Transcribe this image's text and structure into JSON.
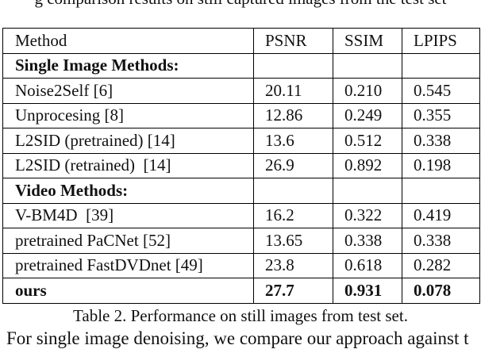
{
  "text_above": "g comparison results on still captured images from the test set",
  "table": {
    "header": [
      "Method",
      "PSNR",
      "SSIM",
      "LPIPS"
    ],
    "rows": [
      {
        "section": "Single Image Methods:"
      },
      {
        "cells": [
          "Noise2Self [6]",
          "20.11",
          "0.210",
          "0.545"
        ]
      },
      {
        "cells": [
          "Unprocesing [8]",
          "12.86",
          "0.249",
          "0.355"
        ]
      },
      {
        "cells": [
          "L2SID (pretrained) [14]",
          "13.6",
          "0.512",
          "0.338"
        ]
      },
      {
        "cells": [
          "L2SID (retrained)  [14]",
          "26.9",
          "0.892",
          "0.198"
        ]
      },
      {
        "section": "Video Methods:"
      },
      {
        "cells": [
          "V-BM4D  [39]",
          "16.2",
          "0.322",
          "0.419"
        ]
      },
      {
        "cells": [
          "pretrained PaCNet [52]",
          "13.65",
          "0.338",
          "0.338"
        ]
      },
      {
        "cells": [
          "pretrained FastDVDnet [49]",
          "23.8",
          "0.618",
          "0.282"
        ]
      }
    ],
    "best": [
      "ours",
      "27.7",
      "0.931",
      "0.078"
    ]
  },
  "caption": "Table 2. Performance on still images from test set.",
  "text_below": "For single image denoising, we compare our approach against t"
}
